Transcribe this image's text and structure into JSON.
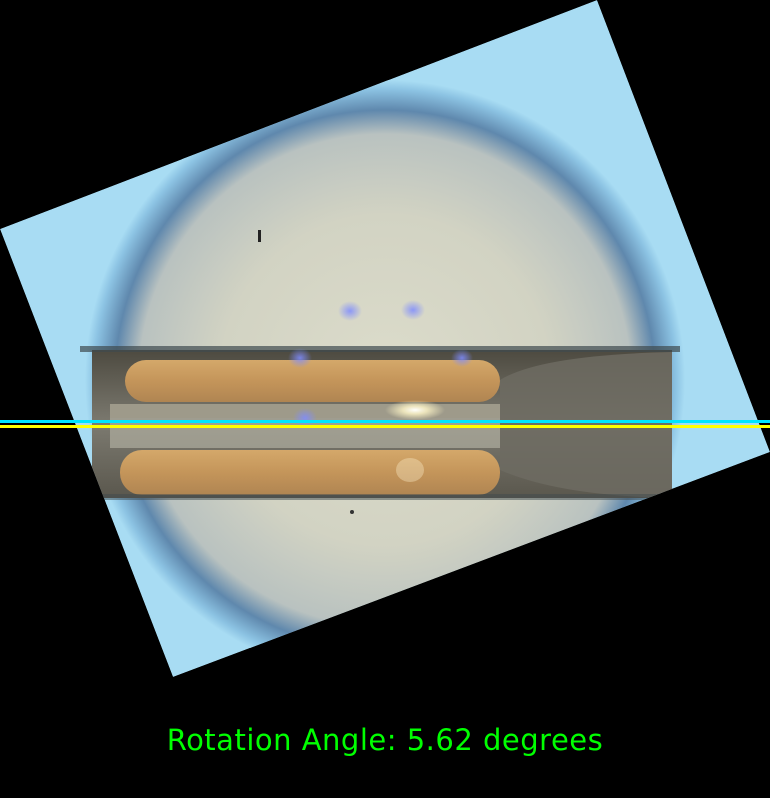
{
  "image": {
    "subject": "microscope view of a rotated sensor element with two gold electrode pads",
    "background_color": "#000000",
    "frame_color": "#a8dcf3",
    "vignette_color": "#3d6b93",
    "field_color": "#d8d8c6",
    "electrode_color": "#c79a5c"
  },
  "overlay": {
    "reference_line_color": "#ffff00",
    "detected_line_color": "#00e5ff",
    "annotation_color": "#00ff00",
    "rotation_text": "Rotation Angle: 5.62 degrees"
  }
}
